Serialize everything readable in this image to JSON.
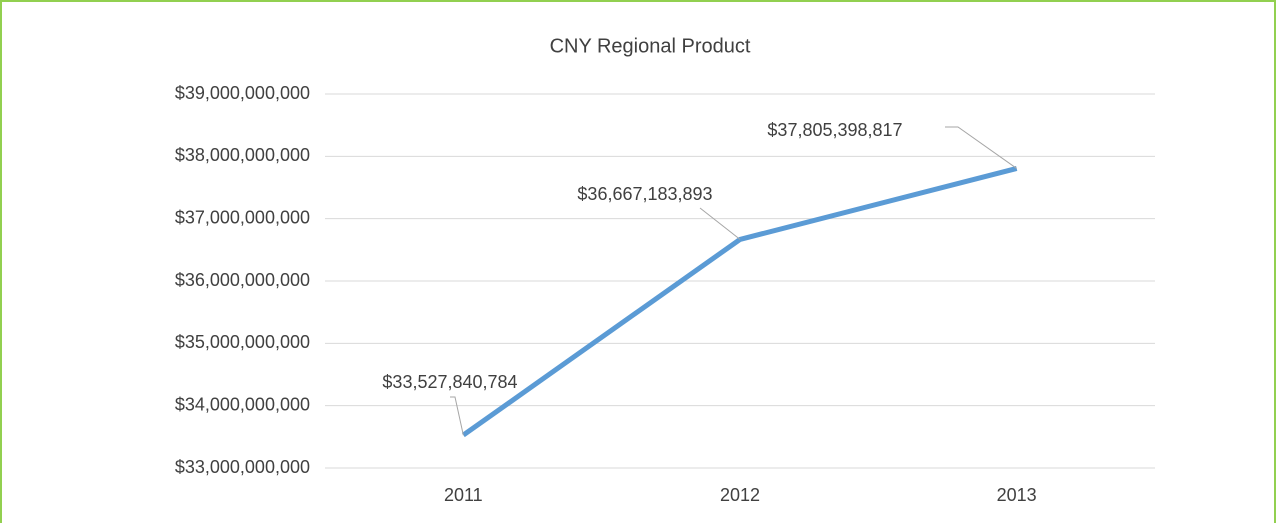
{
  "chart_data": {
    "type": "line",
    "title": "CNY Regional Product",
    "categories": [
      "2011",
      "2012",
      "2013"
    ],
    "series": [
      {
        "name": "CNY Regional Product",
        "color": "#5b9bd5",
        "values": [
          33527840784,
          36667183893,
          37805398817
        ],
        "value_labels": [
          "$33,527,840,784",
          "$36,667,183,893",
          "$37,805,398,817"
        ]
      }
    ],
    "ylim": [
      33000000000,
      39000000000
    ],
    "yticks": [
      {
        "value": 33000000000,
        "label": "$33,000,000,000"
      },
      {
        "value": 34000000000,
        "label": "$34,000,000,000"
      },
      {
        "value": 35000000000,
        "label": "$35,000,000,000"
      },
      {
        "value": 36000000000,
        "label": "$36,000,000,000"
      },
      {
        "value": 37000000000,
        "label": "$37,000,000,000"
      },
      {
        "value": 38000000000,
        "label": "$38,000,000,000"
      },
      {
        "value": 39000000000,
        "label": "$39,000,000,000"
      }
    ],
    "grid": true
  }
}
